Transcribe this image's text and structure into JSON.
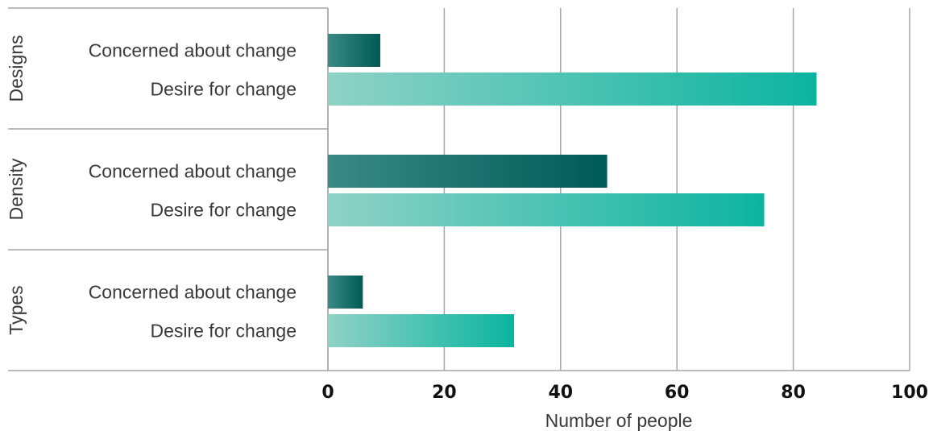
{
  "chart_data": {
    "type": "bar",
    "orientation": "horizontal",
    "groups": [
      {
        "name": "Designs",
        "bars": [
          {
            "label": "Concerned about change",
            "value": 9
          },
          {
            "label": "Desire for change",
            "value": 84
          }
        ]
      },
      {
        "name": "Density",
        "bars": [
          {
            "label": "Concerned about change",
            "value": 48
          },
          {
            "label": "Desire for change",
            "value": 75
          }
        ]
      },
      {
        "name": "Types",
        "bars": [
          {
            "label": "Concerned about change",
            "value": 6
          },
          {
            "label": "Desire for change",
            "value": 32
          }
        ]
      }
    ],
    "xlabel": "Number of people",
    "xlim": [
      0,
      100
    ],
    "xticks": [
      "0",
      "20",
      "40",
      "60",
      "80",
      "100"
    ],
    "grid": true,
    "colors": {
      "Concerned about change": [
        "#3a8a86",
        "#005a55"
      ],
      "Desire for change": [
        "#8fd2c6",
        "#0bb4a0"
      ]
    }
  }
}
